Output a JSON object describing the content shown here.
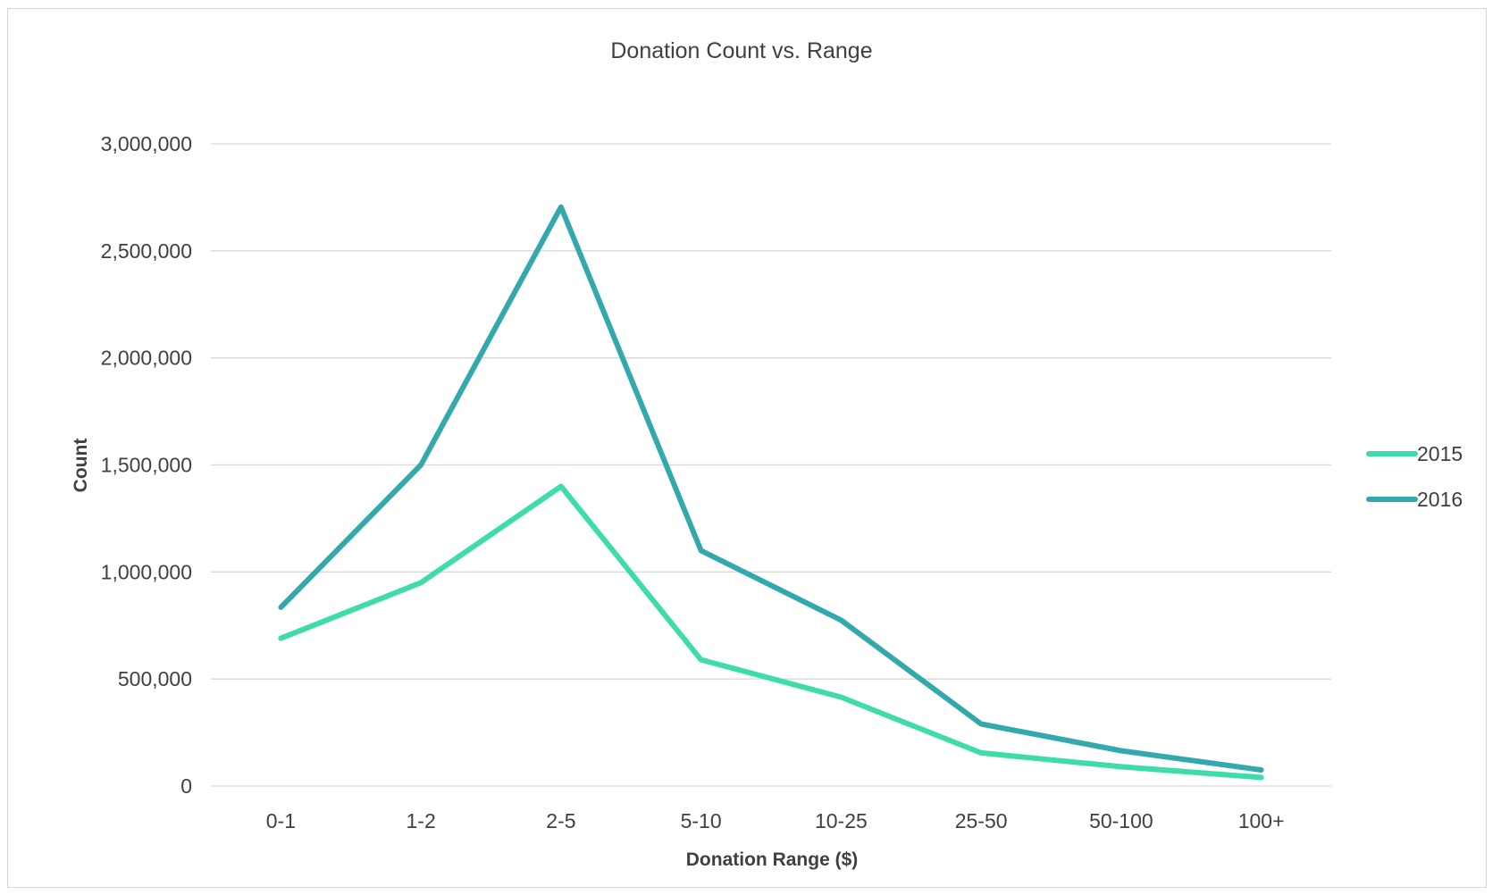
{
  "chart_data": {
    "type": "line",
    "title": "Donation Count vs. Range",
    "xlabel": "Donation Range ($)",
    "ylabel": "Count",
    "categories": [
      "0-1",
      "1-2",
      "2-5",
      "5-10",
      "10-25",
      "25-50",
      "50-100",
      "100+"
    ],
    "ylim": [
      0,
      3000000
    ],
    "yticks": [
      0,
      500000,
      1000000,
      1500000,
      2000000,
      2500000,
      3000000
    ],
    "ytick_labels": [
      "0",
      "500,000",
      "1,000,000",
      "1,500,000",
      "2,000,000",
      "2,500,000",
      "3,000,000"
    ],
    "grid": true,
    "legend_position": "right",
    "series": [
      {
        "name": "2015",
        "color": "#3ddcaa",
        "values": [
          690000,
          950000,
          1400000,
          590000,
          415000,
          155000,
          90000,
          40000
        ]
      },
      {
        "name": "2016",
        "color": "#33a9ad",
        "values": [
          835000,
          1500000,
          2705000,
          1100000,
          775000,
          290000,
          165000,
          75000
        ]
      }
    ]
  }
}
